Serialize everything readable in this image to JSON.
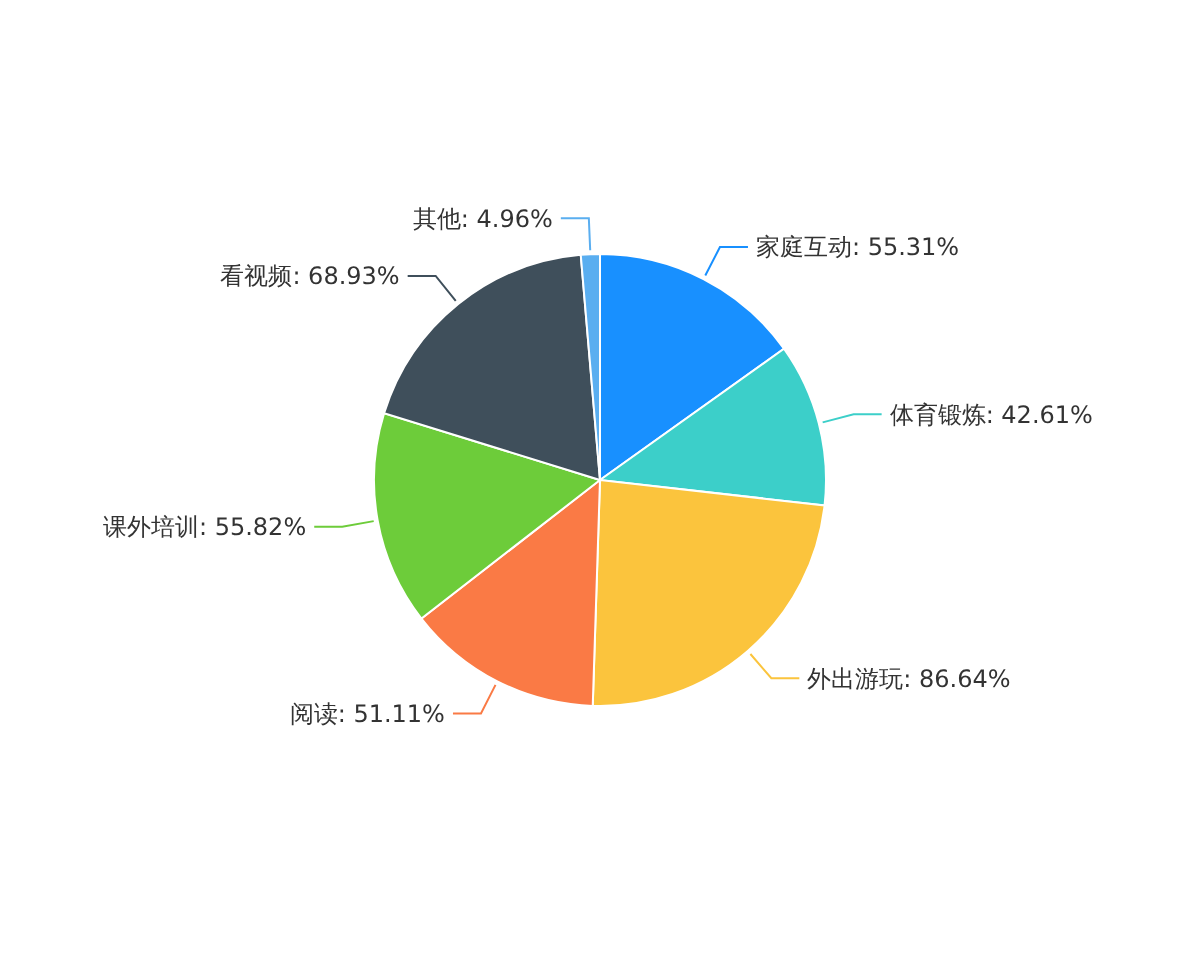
{
  "chart_data": {
    "type": "pie",
    "categories": [
      "家庭互动",
      "体育锻炼",
      "外出游玩",
      "阅读",
      "课外培训",
      "看视频",
      "其他"
    ],
    "values": [
      55.31,
      42.61,
      86.64,
      51.11,
      55.82,
      68.93,
      4.96
    ],
    "value_labels": [
      "55.31%",
      "42.61%",
      "86.64%",
      "51.11%",
      "55.82%",
      "68.93%",
      "4.96%"
    ],
    "colors": [
      "#1890ff",
      "#3ccfc9",
      "#fbc43d",
      "#fa7a45",
      "#6dcc3a",
      "#3f4f5b",
      "#5aaef0"
    ]
  }
}
